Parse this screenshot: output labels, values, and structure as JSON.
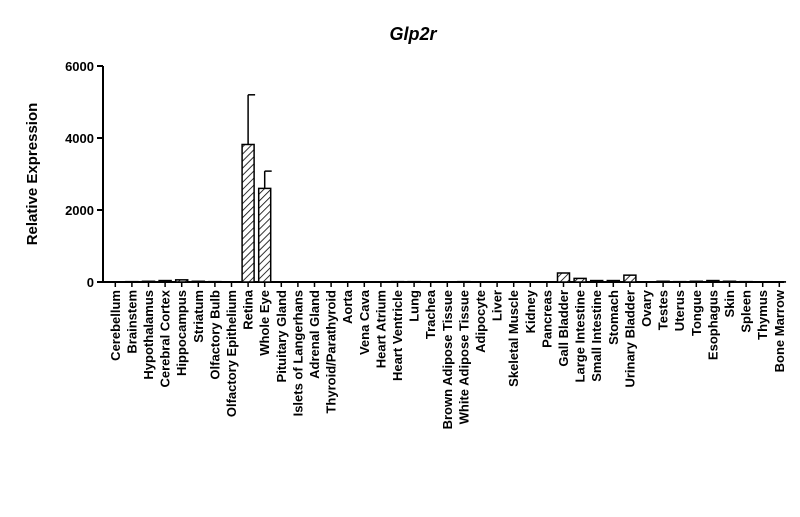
{
  "chart_data": {
    "type": "bar",
    "title": "Glp2r",
    "xlabel": "",
    "ylabel": "Relative Expression",
    "ylim": [
      0,
      6000
    ],
    "yticks": [
      0,
      2000,
      4000,
      6000
    ],
    "grid": false,
    "bar_fill": "hatched",
    "categories": [
      "Cerebellum",
      "Brainstem",
      "Hypothalamus",
      "Cerebral Cortex",
      "Hippocampus",
      "Striatum",
      "Olfactory Bulb",
      "Olfactory Epithelium",
      "Retina",
      "Whole Eye",
      "Pituitary Gland",
      "Islets of Langerhans",
      "Adrenal Gland",
      "Thyroid/Parathyroid",
      "Aorta",
      "Vena Cava",
      "Heart Atrium",
      "Heart Ventricle",
      "Lung",
      "Trachea",
      "Brown Adipose Tissue",
      "White Adipose Tissue",
      "Adipocyte",
      "Liver",
      "Skeletal Muscle",
      "Kidney",
      "Pancreas",
      "Gall Bladder",
      "Large Intestine",
      "Small Intestine",
      "Stomach",
      "Urinary Bladder",
      "Ovary",
      "Testes",
      "Uterus",
      "Tongue",
      "Esophagus",
      "Skin",
      "Spleen",
      "Thymus",
      "Bone Marrow"
    ],
    "values": [
      5,
      10,
      20,
      40,
      60,
      20,
      10,
      5,
      3820,
      2600,
      5,
      5,
      5,
      5,
      5,
      5,
      5,
      10,
      10,
      5,
      5,
      10,
      5,
      5,
      5,
      5,
      5,
      250,
      100,
      40,
      40,
      190,
      5,
      20,
      10,
      20,
      40,
      20,
      10,
      5,
      5
    ],
    "errors": [
      0,
      0,
      0,
      0,
      0,
      0,
      0,
      0,
      1380,
      480,
      0,
      0,
      0,
      0,
      0,
      0,
      0,
      0,
      0,
      0,
      0,
      0,
      0,
      0,
      0,
      0,
      0,
      0,
      0,
      0,
      0,
      0,
      0,
      0,
      0,
      0,
      0,
      0,
      0,
      0,
      0
    ]
  }
}
